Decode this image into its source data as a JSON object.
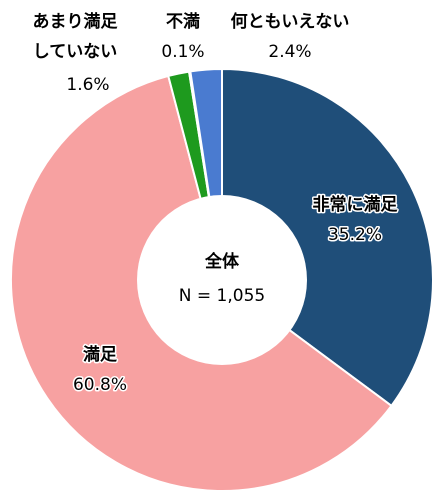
{
  "chart_data": {
    "type": "donut",
    "categories": [
      "非常に満足",
      "満足",
      "あまり満足\nしていない",
      "不満",
      "何ともいえない"
    ],
    "values": [
      35.2,
      60.8,
      1.6,
      0.1,
      2.4
    ],
    "value_labels": [
      "35.2%",
      "60.8%",
      "1.6%",
      "0.1%",
      "2.4%"
    ],
    "colors": [
      "#1f4e79",
      "#f7a1a1",
      "#1e9a1e",
      "#7f7f7f",
      "#4a7bd0"
    ],
    "center_label": [
      "全体",
      "N = 1,055"
    ]
  }
}
